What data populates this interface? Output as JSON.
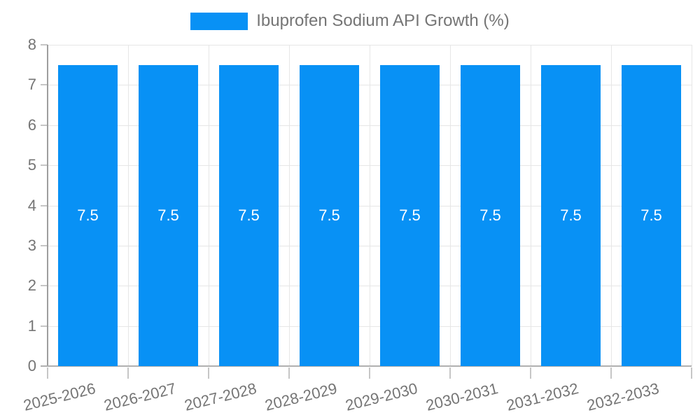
{
  "legend": {
    "label": "Ibuprofen Sodium API Growth (%)"
  },
  "chart_data": {
    "type": "bar",
    "title": "",
    "categories": [
      "2025-2026",
      "2026-2027",
      "2027-2028",
      "2028-2029",
      "2029-2030",
      "2030-2031",
      "2031-2032",
      "2032-2033"
    ],
    "series": [
      {
        "name": "Ibuprofen Sodium API Growth (%)",
        "values": [
          7.5,
          7.5,
          7.5,
          7.5,
          7.5,
          7.5,
          7.5,
          7.5
        ]
      }
    ],
    "bar_value_labels": [
      "7.5",
      "7.5",
      "7.5",
      "7.5",
      "7.5",
      "7.5",
      "7.5",
      "7.5"
    ],
    "xlabel": "",
    "ylabel": "",
    "ylim": [
      0,
      8
    ],
    "yticks": [
      0,
      1,
      2,
      3,
      4,
      5,
      6,
      7,
      8
    ],
    "grid": true,
    "legend_position": "top",
    "x_labels_rotated": true
  },
  "colors": {
    "bar": "#0891f5",
    "bar_label": "#ffffff",
    "axis_text": "#757575",
    "grid": "#e6e6e6",
    "axis_line": "#9e9e9e",
    "baseline": "#b0b0b0",
    "tick": "#c6c6c6",
    "background": "#ffffff"
  }
}
